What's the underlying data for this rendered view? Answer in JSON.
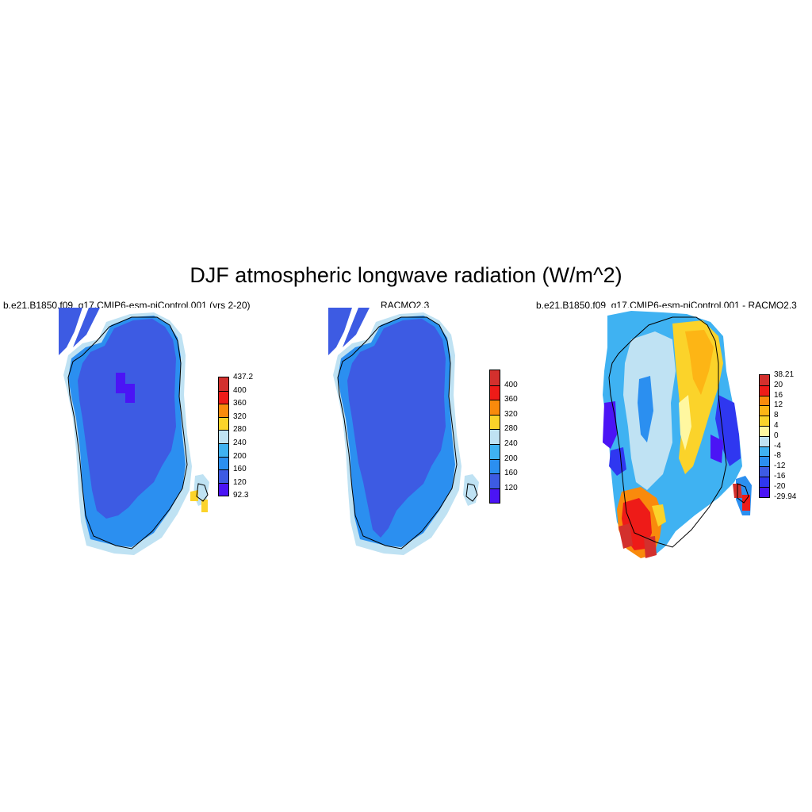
{
  "title": "DJF atmospheric longwave radiation (W/m^2)",
  "panels": [
    {
      "title": "b.e21.B1850.f09_g17.CMIP6-esm-piControl.001 (yrs 2-20)",
      "colorbar": {
        "colors": [
          "#4b14f5",
          "#3d5be3",
          "#2b8ff0",
          "#3fb2f2",
          "#bfe2f3",
          "#fbd32a",
          "#f98a0c",
          "#ee1b18",
          "#d3302d"
        ],
        "labels_top_to_bottom": [
          "437.2",
          "400",
          "360",
          "320",
          "280",
          "240",
          "200",
          "160",
          "120",
          "92.3"
        ]
      }
    },
    {
      "title": "RACMO2.3",
      "colorbar": {
        "colors": [
          "#4b14f5",
          "#3d5be3",
          "#2b8ff0",
          "#3fb2f2",
          "#bfe2f3",
          "#fbd32a",
          "#f98a0c",
          "#ee1b18",
          "#d3302d"
        ],
        "labels_top_to_bottom": [
          "400",
          "360",
          "320",
          "280",
          "240",
          "200",
          "160",
          "120"
        ]
      }
    },
    {
      "title": "b.e21.B1850.f09_g17.CMIP6-esm-piControl.001 - RACMO2.3",
      "colorbar": {
        "colors": [
          "#4b14f5",
          "#2f37f0",
          "#3d5be3",
          "#2b8ff0",
          "#3fb2f2",
          "#bfe2f3",
          "#fff7a0",
          "#fbd32a",
          "#fdb515",
          "#f98a0c",
          "#ee1b18",
          "#d3302d"
        ],
        "labels_top_to_bottom": [
          "38.21",
          "20",
          "16",
          "12",
          "8",
          "4",
          "0",
          "-4",
          "-8",
          "-12",
          "-16",
          "-20",
          "-29.94"
        ]
      }
    }
  ]
}
